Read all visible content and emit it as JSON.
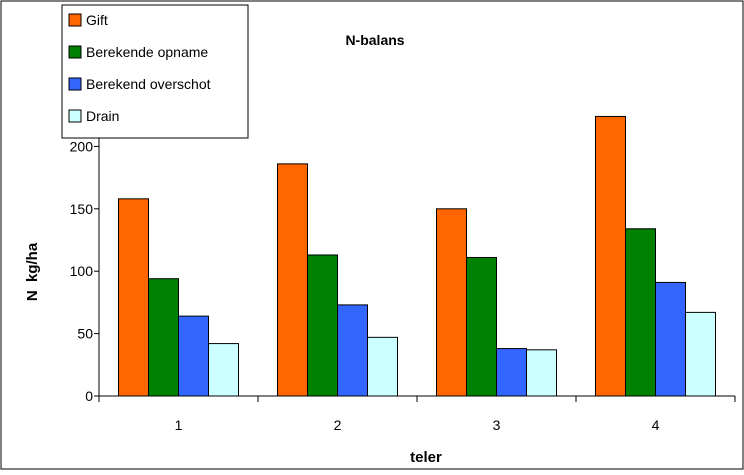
{
  "chart_data": {
    "type": "bar",
    "title": "N-balans",
    "xlabel": "teler",
    "ylabel": "N  kg/ha",
    "categories": [
      "1",
      "2",
      "3",
      "4"
    ],
    "series": [
      {
        "name": "Gift",
        "color": "#ff6600",
        "values": [
          158,
          186,
          150,
          224
        ]
      },
      {
        "name": "Berekende opname",
        "color": "#008000",
        "values": [
          94,
          113,
          111,
          134
        ]
      },
      {
        "name": "Berekend overschot",
        "color": "#3366ff",
        "values": [
          64,
          73,
          38,
          91
        ]
      },
      {
        "name": "Drain",
        "color": "#ccffff",
        "values": [
          42,
          47,
          37,
          67
        ]
      }
    ],
    "ylim": [
      0,
      250
    ],
    "yticks": [
      0,
      50,
      100,
      150,
      200,
      250
    ],
    "grid": false,
    "legend_position": "top-left"
  }
}
